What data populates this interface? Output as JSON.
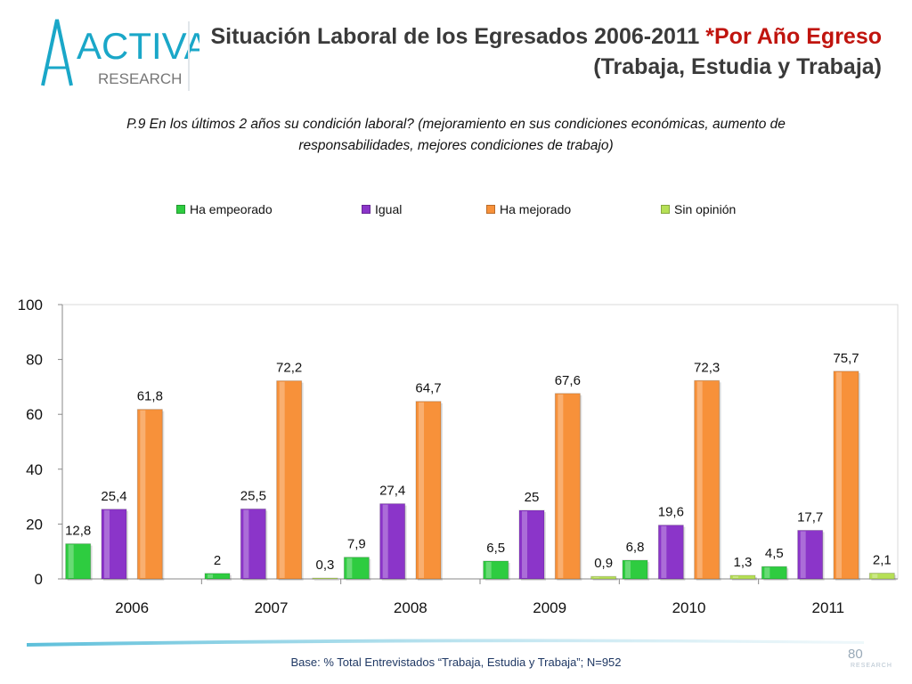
{
  "header": {
    "logo_main": "ACTIVA",
    "logo_sub": "RESEARCH",
    "title_part1": "Situación Laboral de los Egresados 2006-2011 ",
    "title_accent": "*Por Año Egreso",
    "title_line2": "(Trabaja, Estudia y Trabaja)"
  },
  "question": {
    "line1": "P.9  En los últimos 2 años su condición laboral? (mejoramiento en sus condiciones económicas, aumento de",
    "line2": "responsabilidades, mejores condiciones de trabajo)"
  },
  "chart_data": {
    "type": "bar",
    "categories": [
      "2006",
      "2007",
      "2008",
      "2009",
      "2010",
      "2011"
    ],
    "series": [
      {
        "name": "Ha empeorado",
        "color": "#2ecc40",
        "values": [
          12.8,
          2,
          7.9,
          6.5,
          6.8,
          4.5
        ],
        "labels": [
          "12,8",
          "2",
          "7,9",
          "6,5",
          "6,8",
          "4,5"
        ]
      },
      {
        "name": "Igual",
        "color": "#8b35c9",
        "values": [
          25.4,
          25.5,
          27.4,
          25,
          19.6,
          17.7
        ],
        "labels": [
          "25,4",
          "25,5",
          "27,4",
          "25",
          "19,6",
          "17,7"
        ]
      },
      {
        "name": "Ha mejorado",
        "color": "#f7913a",
        "values": [
          61.8,
          72.2,
          64.7,
          67.6,
          72.3,
          75.7
        ],
        "labels": [
          "61,8",
          "72,2",
          "64,7",
          "67,6",
          "72,3",
          "75,7"
        ]
      },
      {
        "name": "Sin opinión",
        "color": "#b6e056",
        "values": [
          0,
          0.3,
          0,
          0.9,
          1.3,
          2.1
        ],
        "labels": [
          "",
          "0,3",
          "",
          "0,9",
          "1,3",
          "2,1"
        ]
      }
    ],
    "yticks": [
      "0",
      "20",
      "40",
      "60",
      "80",
      "100"
    ],
    "ylim": [
      0,
      100
    ],
    "legend_position": "top",
    "grid": false
  },
  "footer": {
    "base_note": "Base: % Total Entrevistados “Trabaja, Estudia y Trabaja”; N=952",
    "page_number": "80",
    "corner_logo": "RESEARCH"
  },
  "colors": {
    "title": "#3a3a3a",
    "accent": "#c0140e",
    "footer_text": "#1f3864"
  }
}
